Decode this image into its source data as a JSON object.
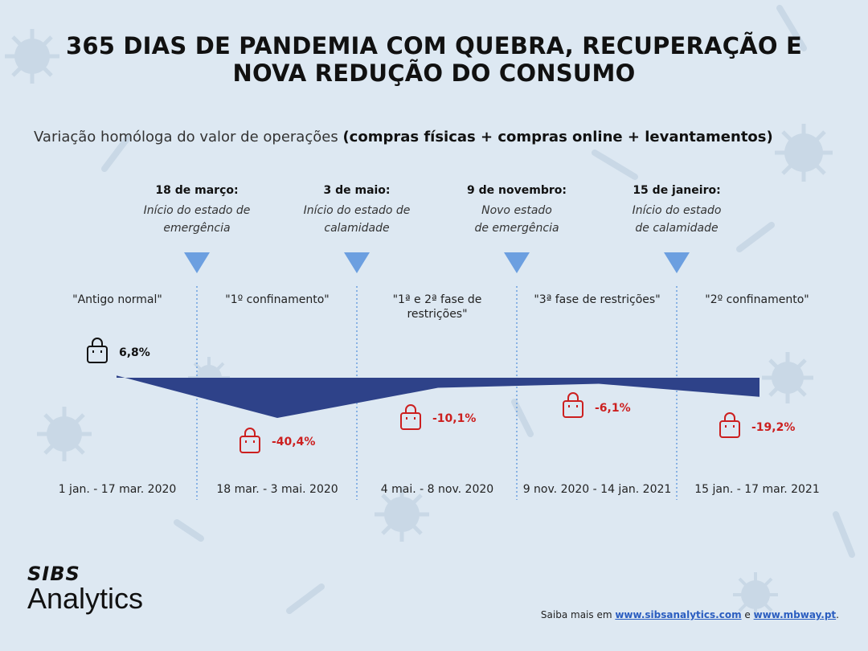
{
  "title": "365 DIAS DE PANDEMIA COM QUEBRA, RECUPERAÇÃO E NOVA REDUÇÃO DO CONSUMO",
  "subtitle_plain": "Variação homóloga do valor de operações ",
  "subtitle_bold": "(compras físicas + compras online + levantamentos)",
  "events": [
    {
      "date": "18 de março:",
      "description": "Início do estado de\nemergência"
    },
    {
      "date": "3 de maio:",
      "description": "Início do estado de\ncalamidade"
    },
    {
      "date": "9 de novembro:",
      "description": "Novo estado\nde emergência"
    },
    {
      "date": "15 de janeiro:",
      "description": "Início do estado\nde calamidade"
    }
  ],
  "phases": [
    "\"Antigo normal\"",
    "\"1º confinamento\"",
    "\"1ª e 2ª fase de\nrestrições\"",
    "\"3ª fase de restrições\"",
    "\"2º confinamento\""
  ],
  "periods": [
    "1 jan. - 17 mar. 2020",
    "18 mar. - 3 mai. 2020",
    "4 mai. - 8 nov. 2020",
    "9 nov. 2020 - 14 jan. 2021",
    "15 jan. - 17 mar. 2021"
  ],
  "chart_data": {
    "type": "area",
    "x": [
      "1 jan. - 17 mar. 2020",
      "18 mar. - 3 mai. 2020",
      "4 mai. - 8 nov. 2020",
      "9 nov. 2020 - 14 jan. 2021",
      "15 jan. - 17 mar. 2021"
    ],
    "series": [
      {
        "values": [
          6.8,
          -40.4,
          -10.1,
          -6.1,
          -19.2
        ],
        "labels": [
          "6,8%",
          "-40,4%",
          "-10,1%",
          "-6,1%",
          "-19,2%"
        ]
      }
    ],
    "ylim": [
      -45,
      10
    ],
    "area_color": "#2e4289",
    "positive_label_color": "#111111",
    "negative_label_color": "#cc1f1f"
  },
  "footer": {
    "prefix": "Saiba mais em ",
    "link1": "www.sibsanalytics.com",
    "middle": " e ",
    "link2": "www.mbway.pt",
    "suffix": "."
  },
  "logo": {
    "brand": "SIBS",
    "product": "Analytics"
  },
  "colors": {
    "background": "#dde8f2",
    "marker": "#6c9fe0",
    "divider": "#6c9fe0"
  }
}
